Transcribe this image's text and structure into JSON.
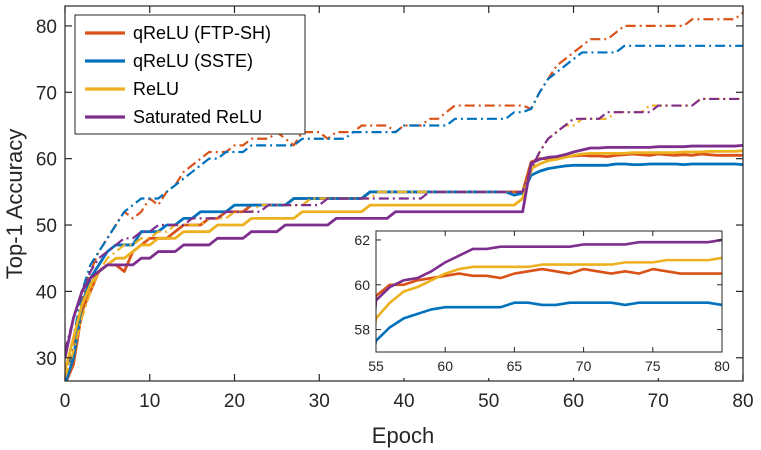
{
  "chart_data": {
    "type": "line",
    "xlabel": "Epoch",
    "ylabel": "Top-1 Accuracy",
    "xlim": [
      0,
      80
    ],
    "ylim": [
      26.5,
      83
    ],
    "xticks": [
      0,
      10,
      20,
      30,
      40,
      50,
      60,
      70,
      80
    ],
    "yticks": [
      30,
      40,
      50,
      60,
      70,
      80
    ],
    "grid": false,
    "legend_position": "top-left",
    "line_styles": {
      "train": "dash-dot",
      "test": "solid"
    },
    "series": [
      {
        "name": "qReLU (FTP-SH)",
        "color": "#D95319",
        "test_y": [
          26,
          29,
          37,
          40,
          43,
          44,
          44,
          43,
          46,
          47,
          48,
          48,
          48,
          49,
          50,
          50,
          50,
          51,
          51,
          52,
          52,
          52,
          53,
          53,
          53,
          53,
          53,
          54,
          54,
          54,
          54,
          54,
          54,
          54,
          54,
          54,
          55,
          55,
          55,
          55,
          55,
          55,
          55,
          55,
          55,
          55,
          55,
          55,
          55,
          55,
          55,
          55,
          55,
          55,
          55,
          59.5,
          60,
          60,
          60.2,
          60.3,
          60.4,
          60.5,
          60.4,
          60.4,
          60.3,
          60.5,
          60.6,
          60.7,
          60.6,
          60.5,
          60.7,
          60.6,
          60.5,
          60.6,
          60.5,
          60.7,
          60.6,
          60.5,
          60.5,
          60.5,
          60.5
        ],
        "train_y": [
          26,
          32,
          39,
          43,
          46,
          48,
          50,
          52,
          51,
          52,
          54,
          53,
          55,
          56,
          58,
          59,
          60,
          61,
          61,
          61,
          62,
          62,
          63,
          63,
          63,
          64,
          63,
          62,
          64,
          64,
          64,
          63,
          64,
          64,
          64,
          65,
          65,
          65,
          65,
          64,
          65,
          65,
          65,
          66,
          66,
          67,
          68,
          68,
          68,
          68,
          68,
          68,
          68,
          68,
          68,
          67.5,
          70,
          72,
          74,
          75,
          76,
          77,
          78,
          78,
          78,
          79,
          80,
          80,
          80,
          80,
          80,
          80,
          80,
          80,
          81,
          81,
          81,
          81,
          81,
          81,
          82
        ]
      },
      {
        "name": "qReLU (SSTE)",
        "color": "#0072BD",
        "test_y": [
          26,
          30,
          38,
          42,
          44,
          46,
          47,
          47,
          47,
          49,
          49,
          49,
          50,
          50,
          51,
          51,
          52,
          52,
          52,
          52,
          53,
          53,
          53,
          53,
          53,
          53,
          53,
          54,
          54,
          54,
          54,
          54,
          54,
          54,
          54,
          54,
          55,
          55,
          55,
          55,
          55,
          55,
          55,
          55,
          55,
          55,
          55,
          55,
          55,
          55,
          55,
          55,
          55,
          54.5,
          54.8,
          57.5,
          58.1,
          58.5,
          58.7,
          58.9,
          59,
          59,
          59,
          59,
          59,
          59.2,
          59.2,
          59.1,
          59.1,
          59.2,
          59.2,
          59.2,
          59.2,
          59.1,
          59.2,
          59.2,
          59.2,
          59.2,
          59.2,
          59.2,
          59.1
        ],
        "train_y": [
          26,
          33,
          40,
          44,
          46,
          48,
          50,
          52,
          53,
          54,
          54,
          54,
          55,
          56,
          57,
          58,
          59,
          60,
          60,
          61,
          61,
          61,
          62,
          62,
          62,
          62,
          62,
          62,
          63,
          63,
          63,
          63,
          63,
          63,
          64,
          64,
          64,
          64,
          64,
          64,
          65,
          65,
          65,
          65,
          65,
          65,
          66,
          66,
          66,
          66,
          66,
          66,
          66,
          67,
          67,
          67.5,
          70,
          72,
          73,
          74,
          75,
          76,
          76,
          76,
          76,
          76,
          77,
          77,
          77,
          77,
          77,
          77,
          77,
          77,
          77,
          77,
          77,
          77,
          77,
          77,
          77
        ]
      },
      {
        "name": "ReLU",
        "color": "#EDB120",
        "test_y": [
          28,
          33,
          38,
          41,
          43,
          44,
          45,
          45,
          46,
          47,
          47,
          48,
          48,
          48,
          49,
          49,
          49,
          49,
          50,
          50,
          50,
          50,
          51,
          51,
          51,
          51,
          51,
          51,
          52,
          52,
          52,
          52,
          52,
          52,
          52,
          52,
          53,
          53,
          53,
          53,
          53,
          53,
          53,
          53,
          53,
          53,
          53,
          53,
          53,
          53,
          53,
          53,
          53,
          53,
          54,
          58.5,
          59.2,
          59.7,
          59.9,
          60.2,
          60.5,
          60.7,
          60.8,
          60.8,
          60.8,
          60.8,
          60.8,
          60.9,
          60.9,
          60.9,
          60.9,
          60.9,
          60.9,
          61,
          61,
          61,
          61.1,
          61.1,
          61.1,
          61.1,
          61.2
        ],
        "train_y": [
          27,
          31,
          36,
          40,
          43,
          45,
          46,
          47,
          47,
          48,
          48,
          49,
          49,
          50,
          50,
          50,
          50,
          51,
          51,
          51,
          52,
          52,
          52,
          53,
          53,
          53,
          53,
          53,
          53,
          54,
          54,
          54,
          54,
          54,
          54,
          54,
          54,
          55,
          55,
          55,
          55,
          55,
          55,
          55,
          55,
          55,
          55,
          55,
          55,
          55,
          55,
          55,
          55,
          55,
          55,
          58,
          61,
          63,
          64,
          65,
          65,
          66,
          66,
          66,
          66,
          67,
          67,
          67,
          67,
          68,
          68,
          68,
          68,
          68,
          68,
          69,
          69,
          69,
          69,
          69,
          69
        ]
      },
      {
        "name": "Saturated ReLU",
        "color": "#7E2F8E",
        "test_y": [
          30,
          36,
          40,
          42,
          43,
          44,
          44,
          44,
          44,
          45,
          45,
          46,
          46,
          46,
          47,
          47,
          47,
          47,
          48,
          48,
          48,
          48,
          49,
          49,
          49,
          49,
          50,
          50,
          50,
          50,
          50,
          50,
          51,
          51,
          51,
          51,
          51,
          51,
          51,
          52,
          52,
          52,
          52,
          52,
          52,
          52,
          52,
          52,
          52,
          52,
          52,
          52,
          52,
          52,
          52,
          59.3,
          59.9,
          60.2,
          60.3,
          60.6,
          61,
          61.3,
          61.6,
          61.6,
          61.7,
          61.7,
          61.7,
          61.7,
          61.7,
          61.7,
          61.8,
          61.8,
          61.8,
          61.8,
          61.9,
          61.9,
          61.9,
          61.9,
          61.9,
          61.9,
          62
        ],
        "train_y": [
          31,
          36,
          40,
          43,
          45,
          46,
          47,
          48,
          48,
          49,
          49,
          50,
          50,
          50,
          50,
          51,
          51,
          51,
          51,
          52,
          52,
          52,
          52,
          52,
          53,
          53,
          53,
          53,
          53,
          53,
          53,
          54,
          54,
          54,
          54,
          54,
          54,
          54,
          54,
          54,
          54,
          54,
          54,
          55,
          55,
          55,
          55,
          55,
          55,
          55,
          55,
          55,
          55,
          55,
          55,
          58.5,
          61,
          63,
          64,
          65,
          66,
          66,
          66,
          66,
          67,
          67,
          67,
          67,
          67,
          67,
          68,
          68,
          68,
          68,
          68,
          69,
          69,
          69,
          69,
          69,
          69
        ]
      }
    ],
    "inset": {
      "xlim": [
        55,
        80
      ],
      "ylim": [
        57,
        62.4
      ],
      "xticks": [
        55,
        60,
        65,
        70,
        75,
        80
      ],
      "yticks": [
        58,
        60,
        62
      ]
    }
  }
}
